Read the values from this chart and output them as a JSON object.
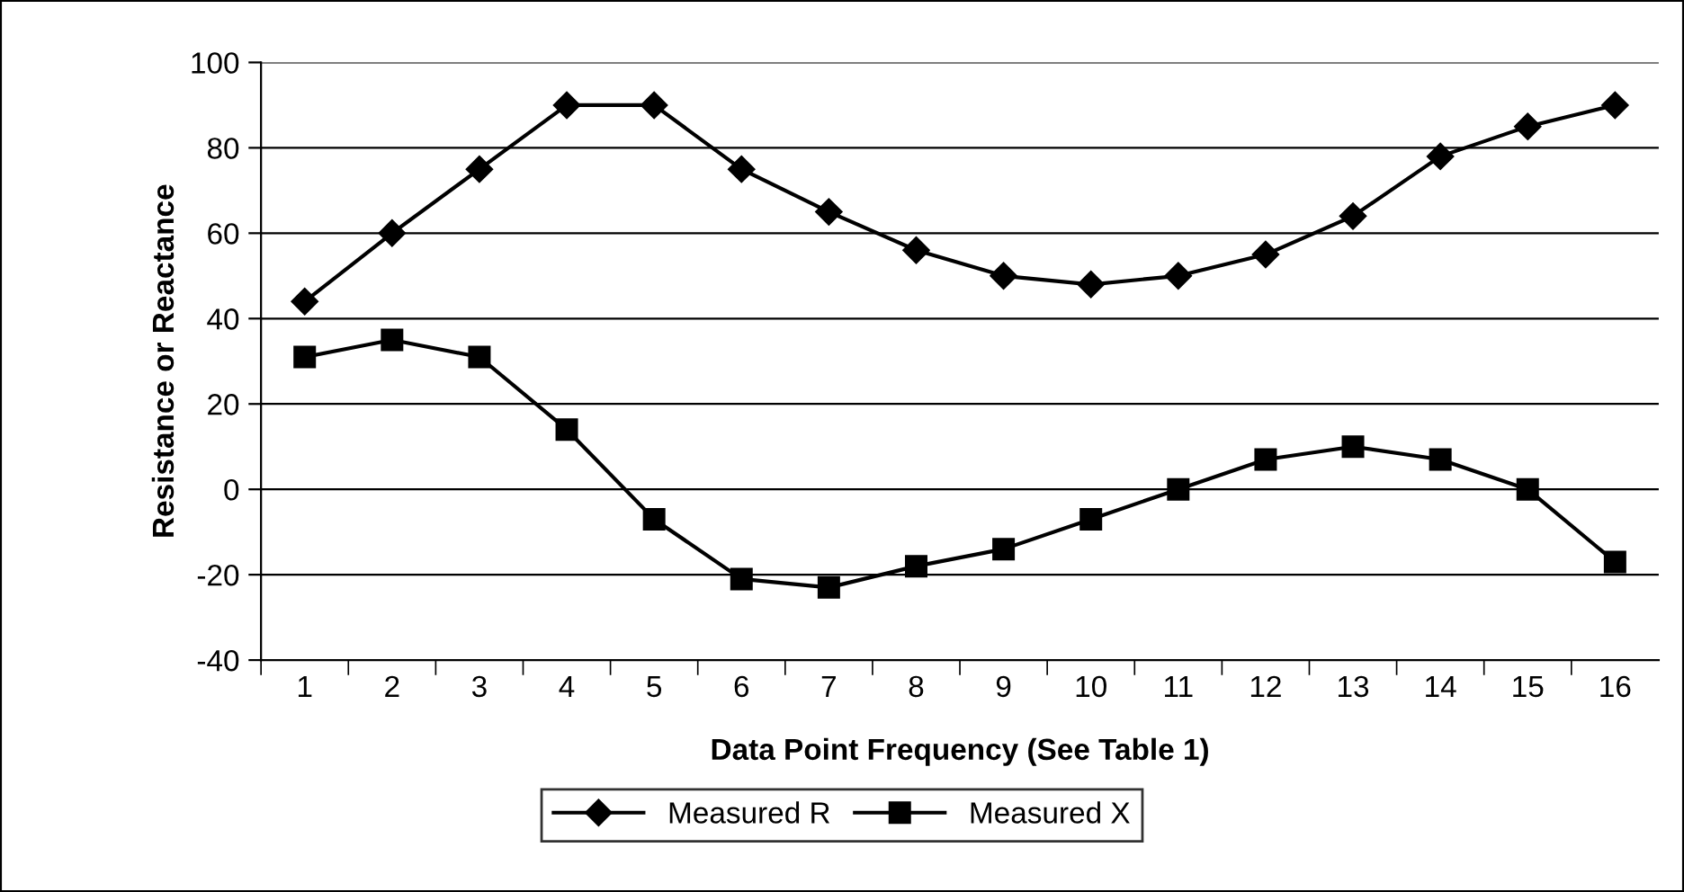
{
  "chart_data": {
    "type": "line",
    "xlabel": "Data Point Frequency (See Table 1)",
    "ylabel": "Resistance or Reactance",
    "categories": [
      "1",
      "2",
      "3",
      "4",
      "5",
      "6",
      "7",
      "8",
      "9",
      "10",
      "11",
      "12",
      "13",
      "14",
      "15",
      "16"
    ],
    "series": [
      {
        "name": "Measured R",
        "color": "#000000",
        "marker": "diamond",
        "values": [
          44,
          60,
          75,
          90,
          90,
          75,
          65,
          56,
          50,
          48,
          50,
          55,
          64,
          78,
          85,
          90
        ]
      },
      {
        "name": "Measured X",
        "color": "#000000",
        "marker": "square",
        "values": [
          31,
          35,
          31,
          14,
          -7,
          -21,
          -23,
          -18,
          -14,
          -7,
          0,
          7,
          10,
          7,
          0,
          -17
        ]
      }
    ],
    "ylim": [
      -40,
      100
    ],
    "yticks": [
      -40,
      -20,
      0,
      20,
      40,
      60,
      80,
      100
    ],
    "grid": "y",
    "legend": "bottom",
    "line_style": "solid"
  }
}
